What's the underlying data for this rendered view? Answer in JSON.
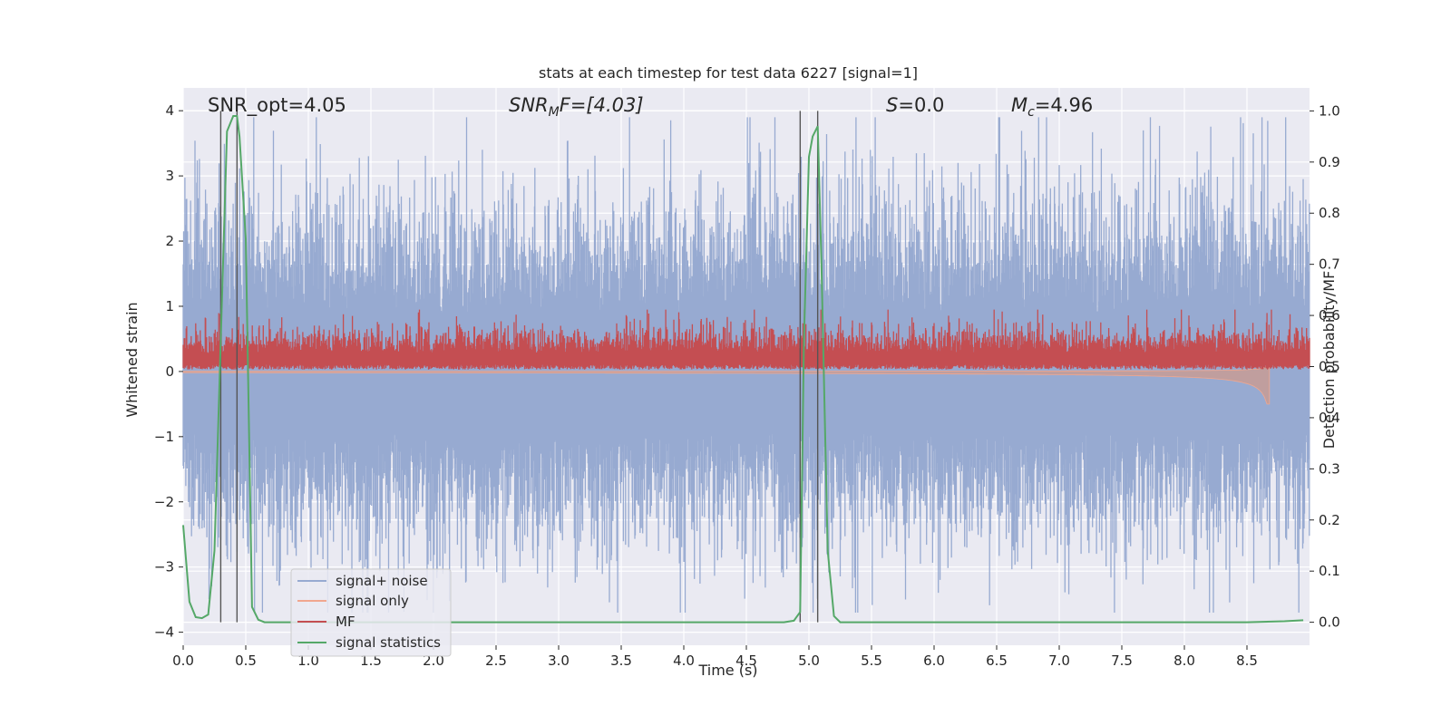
{
  "chart_data": {
    "type": "line",
    "title": "stats at each timestep for test data 6227 [signal=1]",
    "xlabel": "Time (s)",
    "ylabel_left": "Whitened strain",
    "ylabel_right": "Detection probability/MF",
    "xlim": [
      0.0,
      9.0
    ],
    "ylim_left": [
      -4.2,
      4.35
    ],
    "ylim_right": [
      -0.045,
      1.045
    ],
    "x_ticks": [
      "0.0",
      "0.5",
      "1.0",
      "1.5",
      "2.0",
      "2.5",
      "3.0",
      "3.5",
      "4.0",
      "4.5",
      "5.0",
      "5.5",
      "6.0",
      "6.5",
      "7.0",
      "7.5",
      "8.0",
      "8.5"
    ],
    "y_ticks_left": [
      "−4",
      "−3",
      "−2",
      "−1",
      "0",
      "1",
      "2",
      "3",
      "4"
    ],
    "y_ticks_right": [
      "0.0",
      "0.1",
      "0.2",
      "0.3",
      "0.4",
      "0.5",
      "0.6",
      "0.7",
      "0.8",
      "0.9",
      "1.0"
    ],
    "grid": true,
    "legend_position": "lower-left",
    "colors": {
      "background": "#eaeaf2",
      "grid": "#ffffff",
      "signal_noise": "#97aad1",
      "signal_only": "#f1a78f",
      "signal_only_fill": "#c79c95",
      "mf": "#c44e52",
      "signal_statistics": "#55a868",
      "vlines": "#555555"
    },
    "annotations": {
      "snr_opt": "SNR_opt=4.05",
      "snr_mf_main": "SNR",
      "snr_mf_sub": "M",
      "snr_mf_rest": "F=[4.03]",
      "s_main": "S",
      "s_rest": "=0.0",
      "mc_main": "M",
      "mc_sub": "c",
      "mc_rest": "=4.96"
    },
    "series": [
      {
        "name": "signal+ noise",
        "kind": "noise",
        "axis": "left",
        "approx_range": [
          -3.7,
          3.9
        ]
      },
      {
        "name": "signal only",
        "kind": "chirp",
        "axis": "left",
        "end_time": 8.68,
        "min_value": -0.5
      },
      {
        "name": "MF",
        "kind": "matched_filter",
        "axis": "left",
        "approx_range": [
          0.0,
          0.95
        ]
      },
      {
        "name": "signal statistics",
        "kind": "line",
        "axis": "right",
        "x": [
          0.0,
          0.05,
          0.1,
          0.15,
          0.2,
          0.25,
          0.3,
          0.35,
          0.4,
          0.43,
          0.45,
          0.5,
          0.55,
          0.6,
          0.65,
          0.7,
          1.0,
          2.0,
          3.0,
          4.0,
          4.5,
          4.8,
          4.88,
          4.93,
          4.96,
          5.0,
          5.03,
          5.07,
          5.1,
          5.15,
          5.2,
          5.25,
          5.5,
          6.0,
          7.0,
          8.0,
          8.5,
          8.8,
          8.95
        ],
        "y": [
          0.19,
          0.04,
          0.01,
          0.008,
          0.015,
          0.14,
          0.55,
          0.96,
          0.99,
          0.99,
          0.95,
          0.75,
          0.03,
          0.005,
          0.0,
          0.0,
          0.0,
          0.0,
          0.0,
          0.0,
          0.0,
          0.0,
          0.003,
          0.02,
          0.55,
          0.91,
          0.95,
          0.97,
          0.7,
          0.14,
          0.012,
          0.0,
          0.0,
          0.0,
          0.0,
          0.0,
          0.0,
          0.002,
          0.004
        ]
      }
    ],
    "vlines": [
      0.3,
      0.43,
      4.93,
      5.07
    ]
  },
  "legend": {
    "items": [
      {
        "label": "signal+ noise",
        "color": "#97aad1"
      },
      {
        "label": "signal only",
        "color": "#f1a78f"
      },
      {
        "label": "MF",
        "color": "#c44e52"
      },
      {
        "label": "signal statistics",
        "color": "#55a868"
      }
    ]
  }
}
